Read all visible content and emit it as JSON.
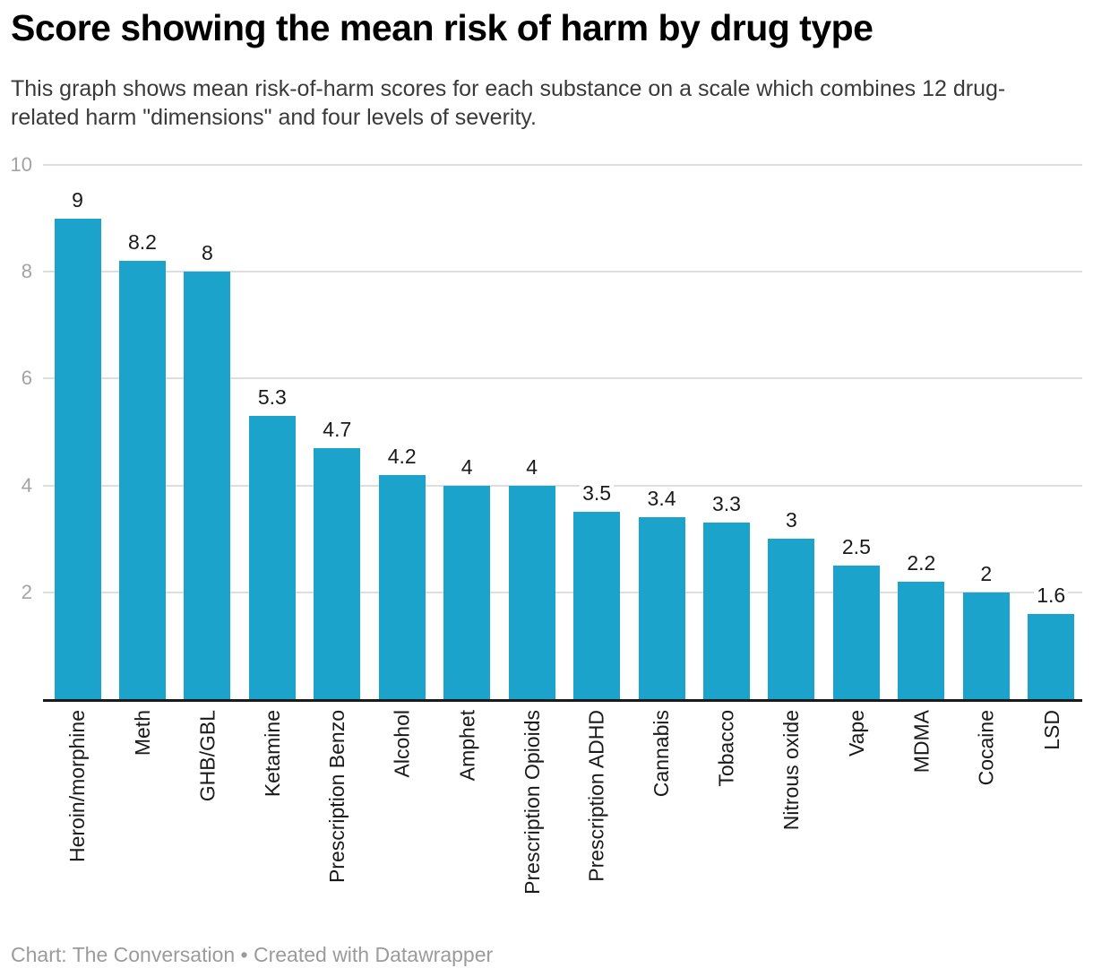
{
  "header": {
    "title": "Score showing the mean risk of harm by drug type",
    "subtitle": "This graph shows mean risk-of-harm scores for each substance on a scale which combines 12 drug-related harm \"dimensions\" and four levels of severity."
  },
  "footer": {
    "text": "Chart: The Conversation • Created with Datawrapper"
  },
  "chart_data": {
    "type": "bar",
    "title": "Score showing the mean risk of harm by drug type",
    "subtitle": "This graph shows mean risk-of-harm scores for each substance on a scale which combines 12 drug-related harm \"dimensions\" and four levels of severity.",
    "categories": [
      "Heroin/morphine",
      "Meth",
      "GHB/GBL",
      "Ketamine",
      "Prescription Benzo",
      "Alcohol",
      "Amphet",
      "Prescription Opioids",
      "Prescription ADHD",
      "Cannabis",
      "Tobacco",
      "Nitrous oxide",
      "Vape",
      "MDMA",
      "Cocaine",
      "LSD"
    ],
    "values": [
      9,
      8.2,
      8,
      5.3,
      4.7,
      4.2,
      4,
      4,
      3.5,
      3.4,
      3.3,
      3,
      2.5,
      2.2,
      2,
      1.6
    ],
    "value_labels": [
      "9",
      "8.2",
      "8",
      "5.3",
      "4.7",
      "4.2",
      "4",
      "4",
      "3.5",
      "3.4",
      "3.3",
      "3",
      "2.5",
      "2.2",
      "2",
      "1.6"
    ],
    "xlabel": "",
    "ylabel": "",
    "ylim": [
      0,
      10
    ],
    "yticks": [
      2,
      4,
      6,
      8,
      10
    ],
    "grid": true,
    "legend": false,
    "category_labels_rotated": true,
    "colors": {
      "bar": "#1ba3cc",
      "grid": "#dedede",
      "axis": "#1a1a1a",
      "ytick_label": "#a3a3a3",
      "value_label": "#1a1a1a",
      "category_label": "#1a1a1a"
    }
  }
}
